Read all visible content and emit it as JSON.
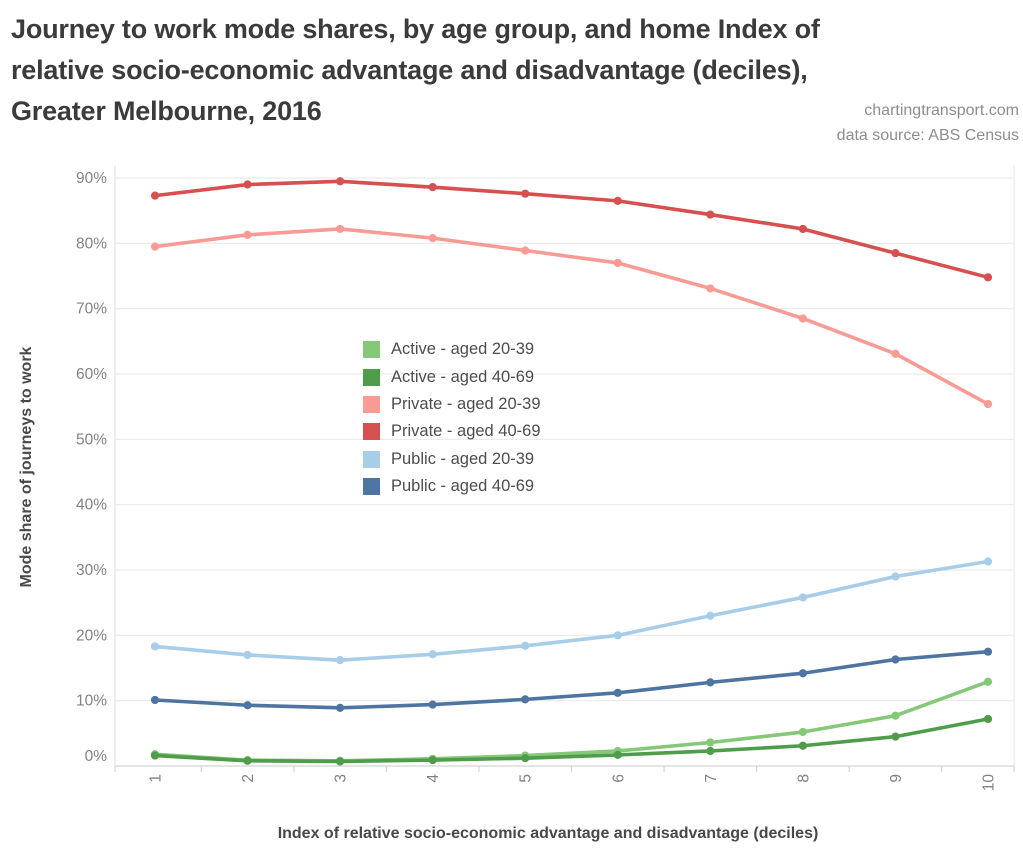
{
  "title_lines": [
    "Journey to work mode shares, by age group, and home Index of",
    "relative socio-economic advantage and disadvantage (deciles),",
    "Greater Melbourne, 2016"
  ],
  "credit": {
    "site": "chartingtransport.com",
    "source": "data source: ABS Census"
  },
  "chart_data": {
    "type": "line",
    "title": "Journey to work mode shares, by age group, and home Index of relative socio-economic advantage and disadvantage (deciles), Greater Melbourne, 2016",
    "xlabel": "Index of relative socio-economic advantage and disadvantage (deciles)",
    "ylabel": "Mode share of journeys to work",
    "categories": [
      "1",
      "2",
      "3",
      "4",
      "5",
      "6",
      "7",
      "8",
      "9",
      "10"
    ],
    "yticks": [
      0,
      10,
      20,
      30,
      40,
      50,
      60,
      70,
      80,
      90
    ],
    "ytick_labels": [
      "0%",
      "10%",
      "20%",
      "30%",
      "40%",
      "50%",
      "60%",
      "70%",
      "80%",
      "90%"
    ],
    "ylim": [
      0,
      92
    ],
    "grid": true,
    "legend_position": "inside-upper-left-of-plot",
    "series": [
      {
        "name": "Active - aged 20-39",
        "color": "#84c878",
        "values": [
          1.8,
          0.9,
          0.8,
          1.1,
          1.6,
          2.3,
          3.6,
          5.2,
          7.7,
          12.9
        ]
      },
      {
        "name": "Active - aged 40-69",
        "color": "#4f9d4a",
        "values": [
          1.6,
          0.8,
          0.7,
          0.9,
          1.2,
          1.7,
          2.3,
          3.1,
          4.5,
          7.2
        ]
      },
      {
        "name": "Private - aged 20-39",
        "color": "#f89b94",
        "values": [
          79.5,
          81.3,
          82.2,
          80.8,
          78.9,
          77.0,
          73.1,
          68.5,
          63.1,
          55.4
        ]
      },
      {
        "name": "Private - aged 40-69",
        "color": "#d5504e",
        "values": [
          87.3,
          89.0,
          89.5,
          88.6,
          87.6,
          86.5,
          84.4,
          82.2,
          78.5,
          74.8
        ]
      },
      {
        "name": "Public - aged 20-39",
        "color": "#a8cde9",
        "values": [
          18.3,
          17.0,
          16.2,
          17.1,
          18.4,
          20.0,
          23.0,
          25.8,
          29.0,
          31.3
        ]
      },
      {
        "name": "Public - aged 40-69",
        "color": "#4e74a1",
        "values": [
          10.1,
          9.3,
          8.9,
          9.4,
          10.2,
          11.2,
          12.8,
          14.2,
          16.3,
          17.5
        ]
      }
    ],
    "style": {
      "gridline_color": "#e9e9e9",
      "axis_color": "#d4d4d4",
      "tick_label_color": "#828282"
    }
  }
}
